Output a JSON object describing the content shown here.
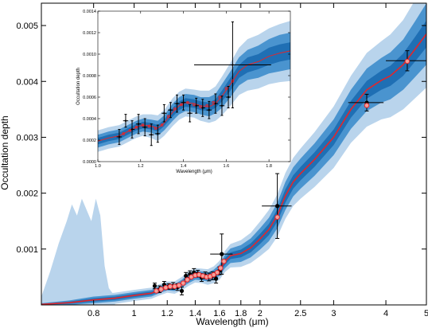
{
  "colors": {
    "band_1sigma": "#1f6fb4",
    "band_2sigma": "#4a94cf",
    "band_3sigma": "#b9d4ec",
    "model_line": "#e3262b",
    "model_points": "#e3262b",
    "data_points": "#000000"
  },
  "chart_data": [
    {
      "id": "main",
      "type": "line",
      "xlabel": "Wavelength (μm)",
      "ylabel": "Occultation depth",
      "xscale": "log",
      "xlim": [
        0.6,
        5.0
      ],
      "ylim": [
        0.0,
        0.0054
      ],
      "xticks": [
        {
          "v": 0.8,
          "label": "0.8"
        },
        {
          "v": 1.0,
          "label": "1"
        },
        {
          "v": 1.2,
          "label": "1.2"
        },
        {
          "v": 1.4,
          "label": "1.4"
        },
        {
          "v": 1.6,
          "label": "1.6"
        },
        {
          "v": 1.8,
          "label": "1.8"
        },
        {
          "v": 2.0,
          "label": "2"
        },
        {
          "v": 2.5,
          "label": "2.5"
        },
        {
          "v": 3.0,
          "label": "3"
        },
        {
          "v": 4.0,
          "label": "4"
        },
        {
          "v": 5.0,
          "label": "5"
        }
      ],
      "yticks": [
        {
          "v": 0.001,
          "label": "0.001"
        },
        {
          "v": 0.002,
          "label": "0.002"
        },
        {
          "v": 0.003,
          "label": "0.003"
        },
        {
          "v": 0.004,
          "label": "0.004"
        },
        {
          "v": 0.005,
          "label": "0.005"
        }
      ],
      "model": {
        "x": [
          0.6,
          0.7,
          0.8,
          0.9,
          1.0,
          1.1,
          1.15,
          1.2,
          1.25,
          1.3,
          1.35,
          1.4,
          1.45,
          1.5,
          1.55,
          1.6,
          1.65,
          1.7,
          1.8,
          1.9,
          2.0,
          2.1,
          2.2,
          2.3,
          2.4,
          2.5,
          2.7,
          3.0,
          3.3,
          3.6,
          3.9,
          4.1,
          4.4,
          4.7,
          5.0
        ],
        "y": [
          1e-05,
          4e-05,
          9e-05,
          0.00012,
          0.00017,
          0.00021,
          0.00027,
          0.00032,
          0.00031,
          0.00038,
          0.00047,
          0.00053,
          0.00052,
          0.0005,
          0.00054,
          0.00062,
          0.00078,
          0.00088,
          0.00092,
          0.00102,
          0.00118,
          0.00135,
          0.0016,
          0.00195,
          0.0022,
          0.00235,
          0.0026,
          0.003,
          0.0035,
          0.00385,
          0.00402,
          0.0041,
          0.0043,
          0.00458,
          0.00485
        ],
        "sigma1": [
          1e-05,
          2e-05,
          3e-05,
          3e-05,
          3e-05,
          3e-05,
          3e-05,
          3e-05,
          3e-05,
          3e-05,
          4e-05,
          4e-05,
          4e-05,
          4e-05,
          4e-05,
          5e-05,
          6e-05,
          6e-05,
          7e-05,
          8e-05,
          9e-05,
          0.0001,
          0.00011,
          0.00012,
          0.00012,
          0.00012,
          0.00013,
          0.00014,
          0.00015,
          0.00016,
          0.00017,
          0.00018,
          0.0002,
          0.00022,
          0.00024
        ],
        "sigma2": [
          2e-05,
          4e-05,
          6e-05,
          6e-05,
          6e-05,
          6e-05,
          6e-05,
          6e-05,
          6e-05,
          7e-05,
          8e-05,
          8e-05,
          8e-05,
          8e-05,
          9e-05,
          0.0001,
          0.00012,
          0.00013,
          0.00015,
          0.00017,
          0.00019,
          0.00021,
          0.00023,
          0.00025,
          0.00026,
          0.00027,
          0.00029,
          0.00032,
          0.00035,
          0.00038,
          0.0004,
          0.00042,
          0.00045,
          0.0005,
          0.00055
        ],
        "sigma3": [
          3e-05,
          6e-05,
          9e-05,
          0.0001,
          0.0001,
          0.0001,
          0.0001,
          0.0001,
          0.00011,
          0.00012,
          0.00013,
          0.00013,
          0.00013,
          0.00014,
          0.00015,
          0.00017,
          0.00019,
          0.00021,
          0.00024,
          0.00027,
          0.00031,
          0.00035,
          0.00038,
          0.00041,
          0.00043,
          0.00045,
          0.00049,
          0.00055,
          0.0006,
          0.00066,
          0.0007,
          0.00074,
          0.0008,
          0.00088,
          0.00096
        ]
      },
      "optical_band": {
        "x": [
          0.6,
          0.63,
          0.66,
          0.69,
          0.71,
          0.73,
          0.75,
          0.77,
          0.79,
          0.81,
          0.83,
          0.85,
          0.87,
          0.9
        ],
        "upper": [
          0.00015,
          0.0006,
          0.0011,
          0.0015,
          0.0018,
          0.0016,
          0.0019,
          0.0017,
          0.0015,
          0.0019,
          0.0016,
          0.0007,
          0.0003,
          0.00015
        ]
      },
      "model_points": {
        "x": [
          1.13,
          1.16,
          1.19,
          1.22,
          1.25,
          1.28,
          1.31,
          1.34,
          1.37,
          1.4,
          1.43,
          1.46,
          1.49,
          1.52,
          1.55,
          1.58,
          1.61,
          1.64,
          2.2,
          3.6,
          4.5
        ],
        "y": [
          0.00025,
          0.00028,
          0.00031,
          0.00033,
          0.00033,
          0.00035,
          0.00039,
          0.00045,
          0.0005,
          0.00053,
          0.00054,
          0.00052,
          0.0005,
          0.00051,
          0.00054,
          0.00058,
          0.00066,
          0.00078,
          0.00157,
          0.00357,
          0.00436
        ]
      },
      "data_points": [
        {
          "x": 1.12,
          "y": 0.00034,
          "xerr": 0.012,
          "yerr": 5e-05
        },
        {
          "x": 1.15,
          "y": 0.00028,
          "xerr": 0.012,
          "yerr": 6e-05
        },
        {
          "x": 1.18,
          "y": 0.00036,
          "xerr": 0.012,
          "yerr": 6e-05
        },
        {
          "x": 1.21,
          "y": 0.00033,
          "xerr": 0.012,
          "yerr": 5e-05
        },
        {
          "x": 1.24,
          "y": 0.00034,
          "xerr": 0.012,
          "yerr": 6e-05
        },
        {
          "x": 1.27,
          "y": 0.00032,
          "xerr": 0.012,
          "yerr": 6e-05
        },
        {
          "x": 1.3,
          "y": 0.00025,
          "xerr": 0.012,
          "yerr": 7e-05
        },
        {
          "x": 1.33,
          "y": 0.00052,
          "xerr": 0.012,
          "yerr": 6e-05
        },
        {
          "x": 1.36,
          "y": 0.00055,
          "xerr": 0.012,
          "yerr": 6e-05
        },
        {
          "x": 1.39,
          "y": 0.00058,
          "xerr": 0.012,
          "yerr": 7e-05
        },
        {
          "x": 1.42,
          "y": 0.00056,
          "xerr": 0.012,
          "yerr": 6e-05
        },
        {
          "x": 1.45,
          "y": 0.00049,
          "xerr": 0.012,
          "yerr": 7e-05
        },
        {
          "x": 1.48,
          "y": 0.00053,
          "xerr": 0.012,
          "yerr": 6e-05
        },
        {
          "x": 1.51,
          "y": 0.0005,
          "xerr": 0.012,
          "yerr": 7e-05
        },
        {
          "x": 1.54,
          "y": 0.00052,
          "xerr": 0.012,
          "yerr": 7e-05
        },
        {
          "x": 1.57,
          "y": 0.00047,
          "xerr": 0.012,
          "yerr": 8e-05
        },
        {
          "x": 1.6,
          "y": 0.00061,
          "xerr": 0.012,
          "yerr": 7e-05
        },
        {
          "x": 1.62,
          "y": 0.00091,
          "xerr": 0.1,
          "yerr": 0.00036
        },
        {
          "x": 2.2,
          "y": 0.00177,
          "xerr": 0.18,
          "yerr": 0.00058
        },
        {
          "x": 3.6,
          "y": 0.00362,
          "xerr": 0.35,
          "yerr": 0.00015
        },
        {
          "x": 4.5,
          "y": 0.00437,
          "xerr": 0.5,
          "yerr": 0.00018
        }
      ]
    },
    {
      "id": "inset",
      "type": "line",
      "xlabel": "Wavelength (μm)",
      "ylabel": "Occultation depth",
      "xscale": "linear",
      "xlim": [
        1.0,
        1.9
      ],
      "ylim": [
        0.0,
        0.0014
      ],
      "xticks": [
        {
          "v": 1.0,
          "label": "1.0"
        },
        {
          "v": 1.2,
          "label": "1.2"
        },
        {
          "v": 1.4,
          "label": "1.4"
        },
        {
          "v": 1.6,
          "label": "1.6"
        },
        {
          "v": 1.8,
          "label": "1.8"
        }
      ],
      "yticks": [
        {
          "v": 0.0,
          "label": "0.0000"
        },
        {
          "v": 0.0002,
          "label": "0.0002"
        },
        {
          "v": 0.0004,
          "label": "0.0004"
        },
        {
          "v": 0.0006,
          "label": "0.0006"
        },
        {
          "v": 0.0008,
          "label": "0.0008"
        },
        {
          "v": 0.001,
          "label": "0.0010"
        },
        {
          "v": 0.0012,
          "label": "0.0012"
        },
        {
          "v": 0.0014,
          "label": "0.0014"
        }
      ],
      "model": {
        "x": [
          1.0,
          1.05,
          1.1,
          1.15,
          1.18,
          1.21,
          1.25,
          1.28,
          1.31,
          1.35,
          1.38,
          1.41,
          1.45,
          1.48,
          1.52,
          1.55,
          1.58,
          1.62,
          1.66,
          1.7,
          1.75,
          1.8,
          1.85,
          1.9
        ],
        "y": [
          0.00019,
          0.00022,
          0.00024,
          0.00029,
          0.00032,
          0.00034,
          0.00033,
          0.00031,
          0.00036,
          0.00046,
          0.00052,
          0.00055,
          0.00054,
          0.00052,
          0.00051,
          0.00054,
          0.00061,
          0.00072,
          0.00084,
          0.0009,
          0.00093,
          0.00098,
          0.00101,
          0.00103
        ],
        "sigma1": [
          3e-05,
          3e-05,
          3e-05,
          3e-05,
          3e-05,
          3e-05,
          3e-05,
          3e-05,
          3e-05,
          4e-05,
          4e-05,
          4e-05,
          4e-05,
          4e-05,
          4e-05,
          4e-05,
          5e-05,
          6e-05,
          6e-05,
          7e-05,
          7e-05,
          8e-05,
          8e-05,
          8e-05
        ],
        "sigma2": [
          6e-05,
          6e-05,
          6e-05,
          6e-05,
          6e-05,
          6e-05,
          6e-05,
          7e-05,
          7e-05,
          8e-05,
          8e-05,
          8e-05,
          8e-05,
          8e-05,
          9e-05,
          9e-05,
          0.00011,
          0.00012,
          0.00013,
          0.00014,
          0.00015,
          0.00016,
          0.00017,
          0.00017
        ],
        "sigma3": [
          0.0001,
          0.0001,
          0.0001,
          0.0001,
          0.0001,
          0.0001,
          0.00011,
          0.00012,
          0.00012,
          0.00013,
          0.00013,
          0.00013,
          0.00013,
          0.00014,
          0.00015,
          0.00016,
          0.00018,
          0.0002,
          0.00022,
          0.00024,
          0.00025,
          0.00026,
          0.00027,
          0.00028
        ]
      },
      "model_points": {
        "x": [
          1.12,
          1.15,
          1.18,
          1.21,
          1.24,
          1.27,
          1.3,
          1.33,
          1.36,
          1.39,
          1.42,
          1.45,
          1.48,
          1.51,
          1.54,
          1.57,
          1.6,
          1.63
        ],
        "y": [
          0.00026,
          0.00029,
          0.00032,
          0.00034,
          0.00033,
          0.00031,
          0.00034,
          0.00042,
          0.00049,
          0.00053,
          0.00055,
          0.00053,
          0.00051,
          0.00052,
          0.00055,
          0.0006,
          0.00068,
          0.00075
        ]
      },
      "data_points": [
        {
          "x": 1.1,
          "y": 0.00023,
          "xerr": 0.012,
          "yerr": 7e-05
        },
        {
          "x": 1.13,
          "y": 0.00038,
          "xerr": 0.012,
          "yerr": 6e-05
        },
        {
          "x": 1.16,
          "y": 0.0003,
          "xerr": 0.012,
          "yerr": 8e-05
        },
        {
          "x": 1.19,
          "y": 0.00035,
          "xerr": 0.012,
          "yerr": 9e-05
        },
        {
          "x": 1.22,
          "y": 0.00032,
          "xerr": 0.012,
          "yerr": 8e-05
        },
        {
          "x": 1.25,
          "y": 0.00025,
          "xerr": 0.012,
          "yerr": 0.0001
        },
        {
          "x": 1.28,
          "y": 0.00026,
          "xerr": 0.012,
          "yerr": 8e-05
        },
        {
          "x": 1.31,
          "y": 0.00045,
          "xerr": 0.012,
          "yerr": 8e-05
        },
        {
          "x": 1.34,
          "y": 0.00048,
          "xerr": 0.012,
          "yerr": 7e-05
        },
        {
          "x": 1.37,
          "y": 0.00054,
          "xerr": 0.012,
          "yerr": 8e-05
        },
        {
          "x": 1.4,
          "y": 0.00055,
          "xerr": 0.012,
          "yerr": 7e-05
        },
        {
          "x": 1.43,
          "y": 0.00045,
          "xerr": 0.012,
          "yerr": 8e-05
        },
        {
          "x": 1.46,
          "y": 0.00052,
          "xerr": 0.012,
          "yerr": 7e-05
        },
        {
          "x": 1.49,
          "y": 0.0005,
          "xerr": 0.012,
          "yerr": 8e-05
        },
        {
          "x": 1.52,
          "y": 0.00048,
          "xerr": 0.012,
          "yerr": 8e-05
        },
        {
          "x": 1.55,
          "y": 0.00054,
          "xerr": 0.012,
          "yerr": 9e-05
        },
        {
          "x": 1.58,
          "y": 0.00052,
          "xerr": 0.012,
          "yerr": 9e-05
        },
        {
          "x": 1.61,
          "y": 0.0006,
          "xerr": 0.012,
          "yerr": 0.0001
        },
        {
          "x": 1.63,
          "y": 0.0009,
          "xerr": 0.18,
          "yerr": 0.0004
        }
      ]
    }
  ]
}
